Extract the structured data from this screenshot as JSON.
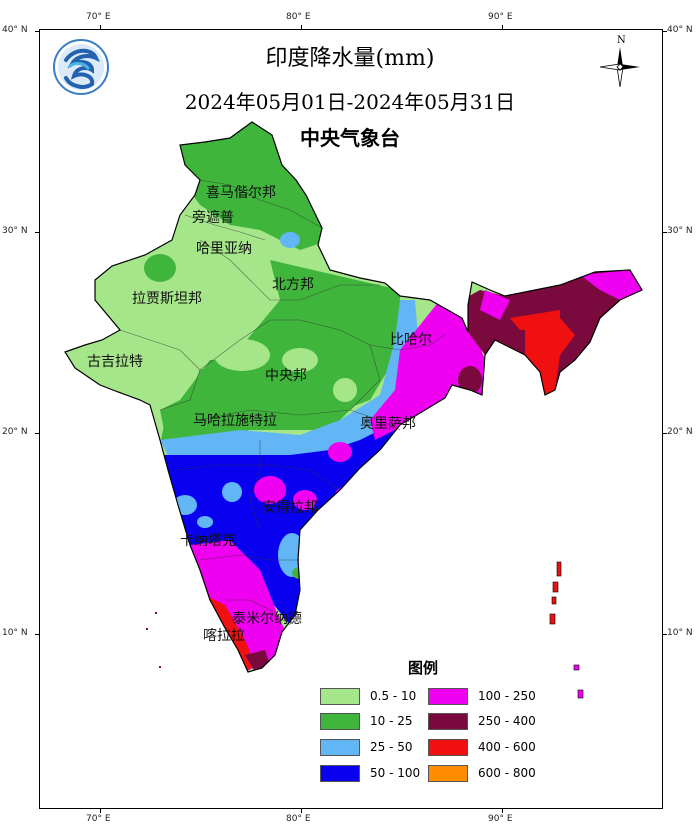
{
  "title": "印度降水量(mm)",
  "date_range": "2024年05月01日-2024年05月31日",
  "organization": "中央气象台",
  "compass_label": "N",
  "axes": {
    "top_ticks": [
      "70° E",
      "80° E",
      "90° E"
    ],
    "bottom_ticks": [
      "70° E",
      "80° E",
      "90° E"
    ],
    "left_ticks": [
      "40° N",
      "30° N",
      "20° N",
      "10° N"
    ],
    "right_ticks": [
      "40° N",
      "30° N",
      "20° N",
      "10° N"
    ]
  },
  "regions": [
    "喜马偕尔邦",
    "旁遮普",
    "哈里亚纳",
    "北方邦",
    "拉贾斯坦邦",
    "古吉拉特",
    "中央邦",
    "比哈尔",
    "马哈拉施特拉",
    "奥里萨邦",
    "安得拉邦",
    "卡纳塔克",
    "泰米尔纳德",
    "喀拉拉"
  ],
  "legend": {
    "title": "图例",
    "items": [
      {
        "label": "0.5 - 10",
        "color": "#a6e68a"
      },
      {
        "label": "10  - 25",
        "color": "#3fb53c"
      },
      {
        "label": "25  - 50",
        "color": "#62b6f5"
      },
      {
        "label": "50  - 100",
        "color": "#0a00f0"
      },
      {
        "label": "100 - 250",
        "color": "#f000f0"
      },
      {
        "label": "250 - 400",
        "color": "#7a0a3e"
      },
      {
        "label": "400 - 600",
        "color": "#f01010"
      },
      {
        "label": "600 - 800",
        "color": "#ff8c00"
      }
    ]
  }
}
